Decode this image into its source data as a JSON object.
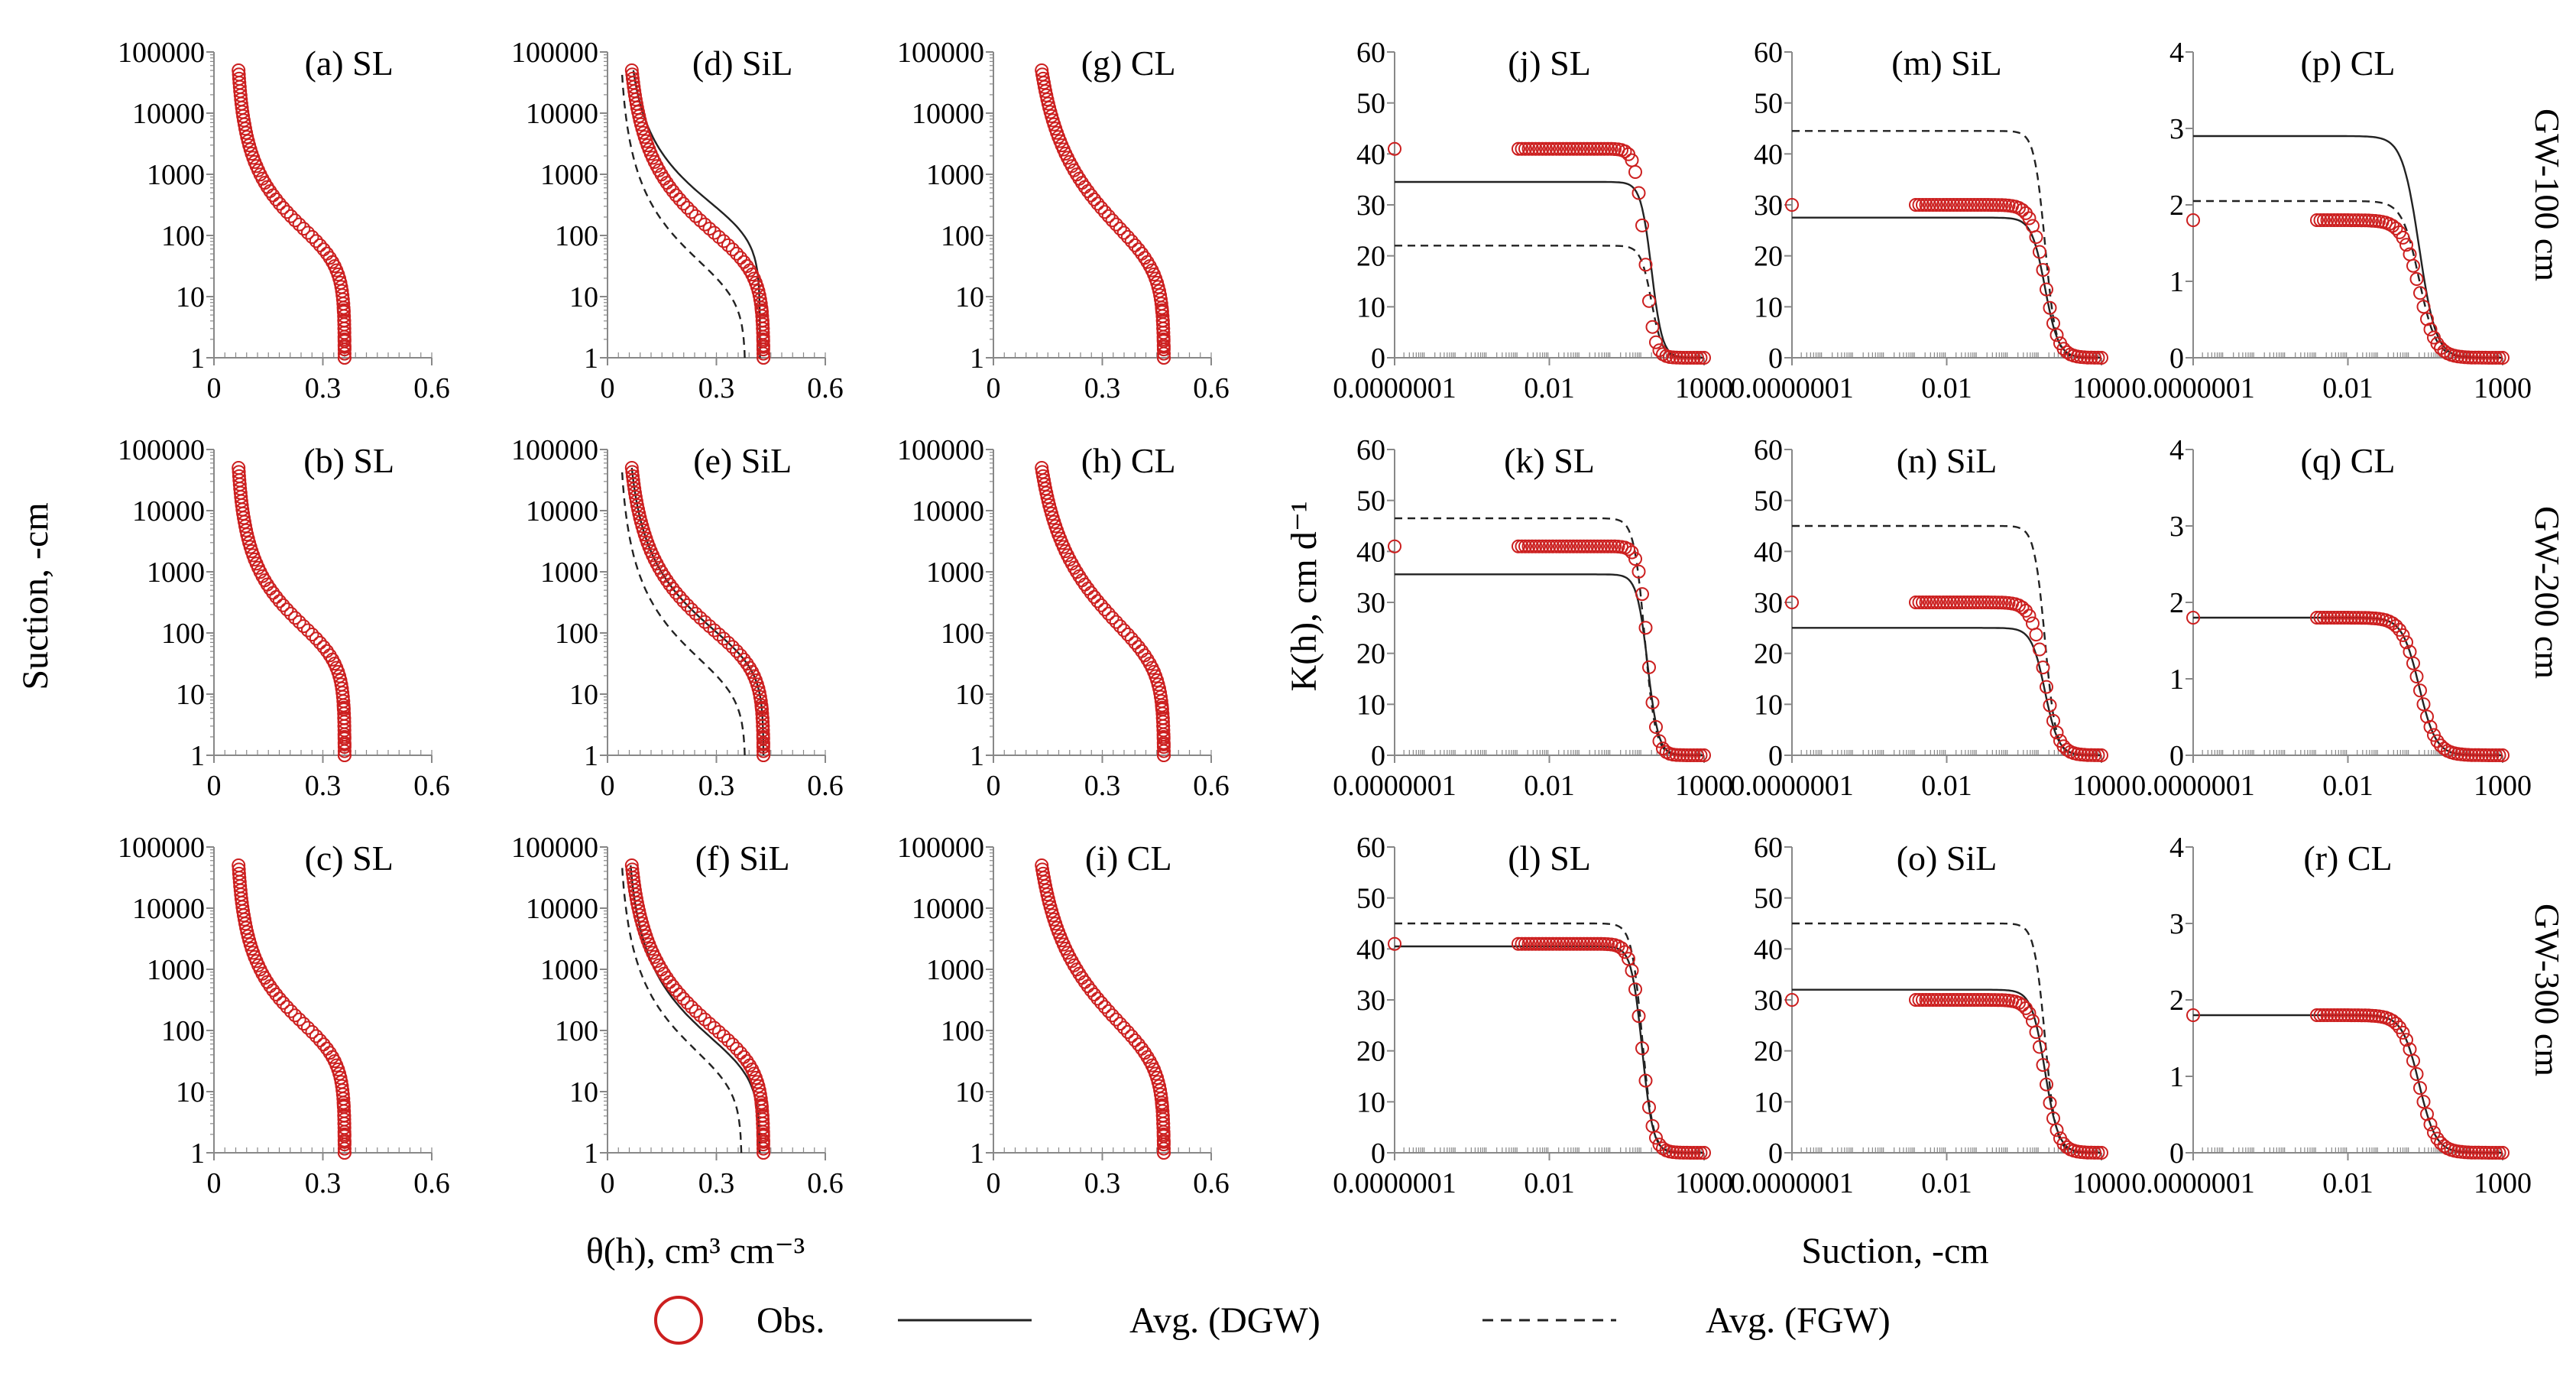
{
  "figure": {
    "y_label_left": "Suction, -cm",
    "x_label_left": "θ(h), cm³ cm⁻³",
    "y_label_right": "K(h), cm d⁻¹",
    "x_label_right": "Suction, -cm",
    "row_labels": [
      "GW-100 cm",
      "GW-200 cm",
      "GW-300 cm"
    ],
    "legend": {
      "obs": "Obs.",
      "dgw": "Avg. (DGW)",
      "fgw": "Avg. (FGW)"
    },
    "colors": {
      "obs": "#cc1f1f",
      "line": "#222222",
      "axis": "#888888"
    }
  },
  "chart_data": [
    {
      "id": "a",
      "type": "scatter",
      "title": "(a) SL",
      "xlim": [
        0,
        0.6
      ],
      "ylim": [
        1,
        100000
      ],
      "yscale": "log",
      "xticks": [
        "0",
        "0.3",
        "0.6"
      ],
      "yticks": [
        "1",
        "10",
        "100",
        "1000",
        "10000",
        "100000"
      ],
      "obs": {
        "thr": 0.06,
        "ths": 0.36,
        "alpha": 0.015,
        "n": 1.55
      },
      "dgw": null,
      "fgw": null
    },
    {
      "id": "b",
      "type": "scatter",
      "title": "(b) SL",
      "xlim": [
        0,
        0.6
      ],
      "ylim": [
        1,
        100000
      ],
      "yscale": "log",
      "xticks": [
        "0",
        "0.3",
        "0.6"
      ],
      "yticks": [
        "1",
        "10",
        "100",
        "1000",
        "10000",
        "100000"
      ],
      "obs": {
        "thr": 0.06,
        "ths": 0.36,
        "alpha": 0.015,
        "n": 1.55
      },
      "dgw": null,
      "fgw": null
    },
    {
      "id": "c",
      "type": "scatter",
      "title": "(c) SL",
      "xlim": [
        0,
        0.6
      ],
      "ylim": [
        1,
        100000
      ],
      "yscale": "log",
      "xticks": [
        "0",
        "0.3",
        "0.6"
      ],
      "yticks": [
        "1",
        "10",
        "100",
        "1000",
        "10000",
        "100000"
      ],
      "obs": {
        "thr": 0.06,
        "ths": 0.36,
        "alpha": 0.015,
        "n": 1.55
      },
      "dgw": null,
      "fgw": null
    },
    {
      "id": "d",
      "type": "scatter",
      "title": "(d) SiL",
      "xlim": [
        0,
        0.6
      ],
      "ylim": [
        1,
        100000
      ],
      "yscale": "log",
      "xticks": [
        "0",
        "0.3",
        "0.6"
      ],
      "yticks": [
        "1",
        "10",
        "100",
        "1000",
        "10000",
        "100000"
      ],
      "obs": {
        "thr": 0.05,
        "ths": 0.43,
        "alpha": 0.02,
        "n": 1.45
      },
      "dgw": {
        "thr": 0.05,
        "ths": 0.42,
        "alpha": 0.006,
        "n": 1.5
      },
      "fgw": {
        "thr": 0.03,
        "ths": 0.38,
        "alpha": 0.06,
        "n": 1.45
      }
    },
    {
      "id": "e",
      "type": "scatter",
      "title": "(e) SiL",
      "xlim": [
        0,
        0.6
      ],
      "ylim": [
        1,
        100000
      ],
      "yscale": "log",
      "xticks": [
        "0",
        "0.3",
        "0.6"
      ],
      "yticks": [
        "1",
        "10",
        "100",
        "1000",
        "10000",
        "100000"
      ],
      "obs": {
        "thr": 0.05,
        "ths": 0.43,
        "alpha": 0.02,
        "n": 1.45
      },
      "dgw": {
        "thr": 0.05,
        "ths": 0.43,
        "alpha": 0.02,
        "n": 1.45
      },
      "fgw": {
        "thr": 0.03,
        "ths": 0.38,
        "alpha": 0.06,
        "n": 1.45
      }
    },
    {
      "id": "f",
      "type": "scatter",
      "title": "(f) SiL",
      "xlim": [
        0,
        0.6
      ],
      "ylim": [
        1,
        100000
      ],
      "yscale": "log",
      "xticks": [
        "0",
        "0.3",
        "0.6"
      ],
      "yticks": [
        "1",
        "10",
        "100",
        "1000",
        "10000",
        "100000"
      ],
      "obs": {
        "thr": 0.05,
        "ths": 0.43,
        "alpha": 0.02,
        "n": 1.45
      },
      "dgw": {
        "thr": 0.05,
        "ths": 0.42,
        "alpha": 0.03,
        "n": 1.45
      },
      "fgw": {
        "thr": 0.03,
        "ths": 0.37,
        "alpha": 0.05,
        "n": 1.45
      }
    },
    {
      "id": "g",
      "type": "scatter",
      "title": "(g) CL",
      "xlim": [
        0,
        0.6
      ],
      "ylim": [
        1,
        100000
      ],
      "yscale": "log",
      "xticks": [
        "0",
        "0.3",
        "0.6"
      ],
      "yticks": [
        "1",
        "10",
        "100",
        "1000",
        "10000",
        "100000"
      ],
      "obs": {
        "thr": 0.1,
        "ths": 0.47,
        "alpha": 0.02,
        "n": 1.35
      },
      "dgw": null,
      "fgw": null
    },
    {
      "id": "h",
      "type": "scatter",
      "title": "(h) CL",
      "xlim": [
        0,
        0.6
      ],
      "ylim": [
        1,
        100000
      ],
      "yscale": "log",
      "xticks": [
        "0",
        "0.3",
        "0.6"
      ],
      "yticks": [
        "1",
        "10",
        "100",
        "1000",
        "10000",
        "100000"
      ],
      "obs": {
        "thr": 0.1,
        "ths": 0.47,
        "alpha": 0.02,
        "n": 1.35
      },
      "dgw": null,
      "fgw": null
    },
    {
      "id": "i",
      "type": "scatter",
      "title": "(i) CL",
      "xlim": [
        0,
        0.6
      ],
      "ylim": [
        1,
        100000
      ],
      "yscale": "log",
      "xticks": [
        "0",
        "0.3",
        "0.6"
      ],
      "yticks": [
        "1",
        "10",
        "100",
        "1000",
        "10000",
        "100000"
      ],
      "obs": {
        "thr": 0.1,
        "ths": 0.47,
        "alpha": 0.02,
        "n": 1.35
      },
      "dgw": null,
      "fgw": null
    },
    {
      "id": "j",
      "type": "scatter",
      "title": "(j) SL",
      "xscale": "log",
      "xlim": [
        1e-07,
        1000
      ],
      "ylim": [
        0,
        60
      ],
      "xticks": [
        "0.0000001",
        "0.01",
        "1000"
      ],
      "yticks": [
        "0",
        "10",
        "20",
        "30",
        "40",
        "50",
        "60"
      ],
      "obs": {
        "ks": 41,
        "h50": 12,
        "p": 3
      },
      "dgw": {
        "ks": 34.5,
        "h50": 20,
        "p": 2.5
      },
      "fgw": {
        "ks": 22,
        "h50": 20,
        "p": 2.5
      }
    },
    {
      "id": "k",
      "type": "scatter",
      "title": "(k) SL",
      "xscale": "log",
      "xlim": [
        1e-07,
        1000
      ],
      "ylim": [
        0,
        60
      ],
      "xticks": [
        "0.0000001",
        "0.01",
        "1000"
      ],
      "yticks": [
        "0",
        "10",
        "20",
        "30",
        "40",
        "50",
        "60"
      ],
      "obs": {
        "ks": 41,
        "h50": 15,
        "p": 3
      },
      "dgw": {
        "ks": 35.5,
        "h50": 15,
        "p": 2.5
      },
      "fgw": {
        "ks": 46.5,
        "h50": 12,
        "p": 2.5
      }
    },
    {
      "id": "l",
      "type": "scatter",
      "title": "(l) SL",
      "xscale": "log",
      "xlim": [
        1e-07,
        1000
      ],
      "ylim": [
        0,
        60
      ],
      "xticks": [
        "0.0000001",
        "0.01",
        "1000"
      ],
      "yticks": [
        "0",
        "10",
        "20",
        "30",
        "40",
        "50",
        "60"
      ],
      "obs": {
        "ks": 41,
        "h50": 10,
        "p": 2.5
      },
      "dgw": {
        "ks": 40.5,
        "h50": 10,
        "p": 2.5
      },
      "fgw": {
        "ks": 45,
        "h50": 10,
        "p": 2.5
      }
    },
    {
      "id": "m",
      "type": "scatter",
      "title": "(m) SiL",
      "xscale": "log",
      "xlim": [
        1e-07,
        1000
      ],
      "ylim": [
        0,
        60
      ],
      "xticks": [
        "0.0000001",
        "0.01",
        "1000"
      ],
      "yticks": [
        "0",
        "10",
        "20",
        "30",
        "40",
        "50",
        "60"
      ],
      "obs": {
        "ks": 30,
        "h50": 15,
        "p": 2
      },
      "dgw": {
        "ks": 27.5,
        "h50": 15,
        "p": 2
      },
      "fgw": {
        "ks": 44.5,
        "h50": 15,
        "p": 2.5
      }
    },
    {
      "id": "n",
      "type": "scatter",
      "title": "(n) SiL",
      "xscale": "log",
      "xlim": [
        1e-07,
        1000
      ],
      "ylim": [
        0,
        60
      ],
      "xticks": [
        "0.0000001",
        "0.01",
        "1000"
      ],
      "yticks": [
        "0",
        "10",
        "20",
        "30",
        "40",
        "50",
        "60"
      ],
      "obs": {
        "ks": 30,
        "h50": 15,
        "p": 2
      },
      "dgw": {
        "ks": 25,
        "h50": 15,
        "p": 2
      },
      "fgw": {
        "ks": 45,
        "h50": 15,
        "p": 2.5
      }
    },
    {
      "id": "o",
      "type": "scatter",
      "title": "(o) SiL",
      "xscale": "log",
      "xlim": [
        1e-07,
        1000
      ],
      "ylim": [
        0,
        60
      ],
      "xticks": [
        "0.0000001",
        "0.01",
        "1000"
      ],
      "yticks": [
        "0",
        "10",
        "20",
        "30",
        "40",
        "50",
        "60"
      ],
      "obs": {
        "ks": 30,
        "h50": 15,
        "p": 2
      },
      "dgw": {
        "ks": 32,
        "h50": 15,
        "p": 2
      },
      "fgw": {
        "ks": 45,
        "h50": 15,
        "p": 2.5
      }
    },
    {
      "id": "p",
      "type": "scatter",
      "title": "(p) CL",
      "xscale": "log",
      "xlim": [
        1e-07,
        1000
      ],
      "ylim": [
        0,
        4
      ],
      "xticks": [
        "0.0000001",
        "0.01",
        "1000"
      ],
      "yticks": [
        "0",
        "1",
        "2",
        "3",
        "4"
      ],
      "obs": {
        "ks": 1.8,
        "h50": 2,
        "p": 1.6
      },
      "dgw": {
        "ks": 2.9,
        "h50": 2,
        "p": 1.6
      },
      "fgw": {
        "ks": 2.05,
        "h50": 2,
        "p": 1.6
      }
    },
    {
      "id": "q",
      "type": "scatter",
      "title": "(q) CL",
      "xscale": "log",
      "xlim": [
        1e-07,
        1000
      ],
      "ylim": [
        0,
        4
      ],
      "xticks": [
        "0.0000001",
        "0.01",
        "1000"
      ],
      "yticks": [
        "0",
        "1",
        "2",
        "3",
        "4"
      ],
      "obs": {
        "ks": 1.8,
        "h50": 2,
        "p": 1.6
      },
      "dgw": {
        "ks": 1.8,
        "h50": 2,
        "p": 1.6
      },
      "fgw": null
    },
    {
      "id": "r",
      "type": "scatter",
      "title": "(r) CL",
      "xscale": "log",
      "xlim": [
        1e-07,
        1000
      ],
      "ylim": [
        0,
        4
      ],
      "xticks": [
        "0.0000001",
        "0.01",
        "1000"
      ],
      "yticks": [
        "0",
        "1",
        "2",
        "3",
        "4"
      ],
      "obs": {
        "ks": 1.8,
        "h50": 2,
        "p": 1.6
      },
      "dgw": {
        "ks": 1.8,
        "h50": 2,
        "p": 1.6
      },
      "fgw": null
    }
  ]
}
